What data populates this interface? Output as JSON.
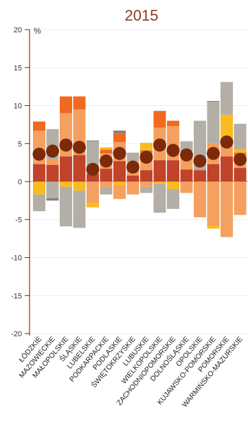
{
  "chart_data": {
    "type": "bar",
    "stacked": true,
    "diverging": true,
    "title": "2015",
    "ylabel": "%",
    "ylim": [
      -20,
      20
    ],
    "yticks": [
      20,
      15,
      10,
      5,
      0,
      -5,
      -10,
      -15,
      -20
    ],
    "grid": true,
    "categories": [
      "ŁÓDZKIE",
      "MAZOWIECKIE",
      "MAŁOPOLSKIE",
      "ŚLĄSKIE",
      "LUBELSKIE",
      "PODKARPACKIE",
      "PODLASKIE",
      "ŚWIĘTOKRZYSKIE",
      "LUBUSKIE",
      "WIELKOPOLSKIE",
      "ZACHODNIOPOMORSKIE",
      "DOLNOŚLĄSKIE",
      "OPOLSKIE",
      "KUJAWSKO-POMORSKIE",
      "POMORSKIE",
      "WARMIŃSKO-MAZURSKIE"
    ],
    "series": [
      {
        "color": "#c0432a",
        "values": [
          2.3,
          2.2,
          3.3,
          3.5,
          1.0,
          1.7,
          2.7,
          0.8,
          1.5,
          2.8,
          2.8,
          1.6,
          1.5,
          2.3,
          3.3,
          1.8
        ]
      },
      {
        "color": "#f4a060",
        "values": [
          4.4,
          0.7,
          5.7,
          6.0,
          0.0,
          2.0,
          2.5,
          1.8,
          1.5,
          4.3,
          4.5,
          2.0,
          0.0,
          2.7,
          1.9,
          1.5
        ]
      },
      {
        "color": "#f06a20",
        "values": [
          1.2,
          0.0,
          2.2,
          1.7,
          0.0,
          0.5,
          1.2,
          0.0,
          1.1,
          2.2,
          0.7,
          0.0,
          0.0,
          0.0,
          0.0,
          0.5
        ]
      },
      {
        "color": "#f8bc20",
        "values": [
          0.0,
          0.0,
          0.0,
          0.0,
          0.0,
          0.3,
          0.0,
          0.0,
          1.0,
          0.0,
          0.0,
          0.0,
          0.0,
          0.0,
          3.6,
          0.5
        ]
      },
      {
        "color": "#b3aea6",
        "values": [
          0.0,
          4.0,
          0.0,
          0.0,
          4.3,
          0.0,
          0.0,
          1.2,
          0.0,
          0.0,
          0.0,
          1.7,
          6.5,
          5.5,
          4.3,
          3.3
        ]
      },
      {
        "color": "#7e7e7e",
        "values": [
          0.0,
          0.0,
          0.0,
          0.0,
          0.1,
          0.0,
          0.3,
          0.0,
          0.0,
          0.0,
          0.0,
          0.0,
          0.0,
          0.1,
          0.0,
          0.0
        ]
      }
    ],
    "negative_series": [
      {
        "color": "#f8bc20",
        "values": [
          -1.7,
          0.0,
          -0.7,
          -1.2,
          0.0,
          0.0,
          -0.5,
          0.0,
          0.0,
          -0.3,
          -1.0,
          0.0,
          0.0,
          0.0,
          0.0,
          0.0
        ]
      },
      {
        "color": "#f4a060",
        "values": [
          0.0,
          0.0,
          0.0,
          0.0,
          -2.8,
          -0.8,
          -1.8,
          -1.7,
          -0.7,
          0.0,
          0.0,
          -1.5,
          -4.7,
          -5.8,
          -7.3,
          -4.4
        ]
      },
      {
        "color": "#f8bc20",
        "values": [
          0.0,
          0.0,
          0.0,
          0.0,
          -0.6,
          0.0,
          0.0,
          0.0,
          0.0,
          0.0,
          0.0,
          0.0,
          0.0,
          -0.4,
          0.0,
          0.0
        ]
      },
      {
        "color": "#b3aea6",
        "values": [
          -2.2,
          -2.2,
          -5.2,
          -4.9,
          0.0,
          -0.9,
          0.0,
          0.0,
          -0.8,
          -3.8,
          -2.6,
          0.0,
          0.0,
          0.0,
          0.0,
          0.0
        ]
      },
      {
        "color": "#7e7e7e",
        "values": [
          0.0,
          -0.3,
          0.0,
          0.0,
          0.0,
          0.0,
          0.0,
          0.0,
          0.0,
          0.0,
          0.0,
          0.0,
          0.0,
          0.0,
          0.0,
          0.0
        ]
      }
    ],
    "dots": {
      "color": "#7d2a0a",
      "values": [
        3.6,
        4.0,
        4.8,
        4.5,
        1.6,
        2.7,
        3.7,
        1.9,
        3.2,
        4.8,
        4.1,
        3.5,
        2.7,
        3.7,
        5.2,
        2.9
      ]
    }
  }
}
